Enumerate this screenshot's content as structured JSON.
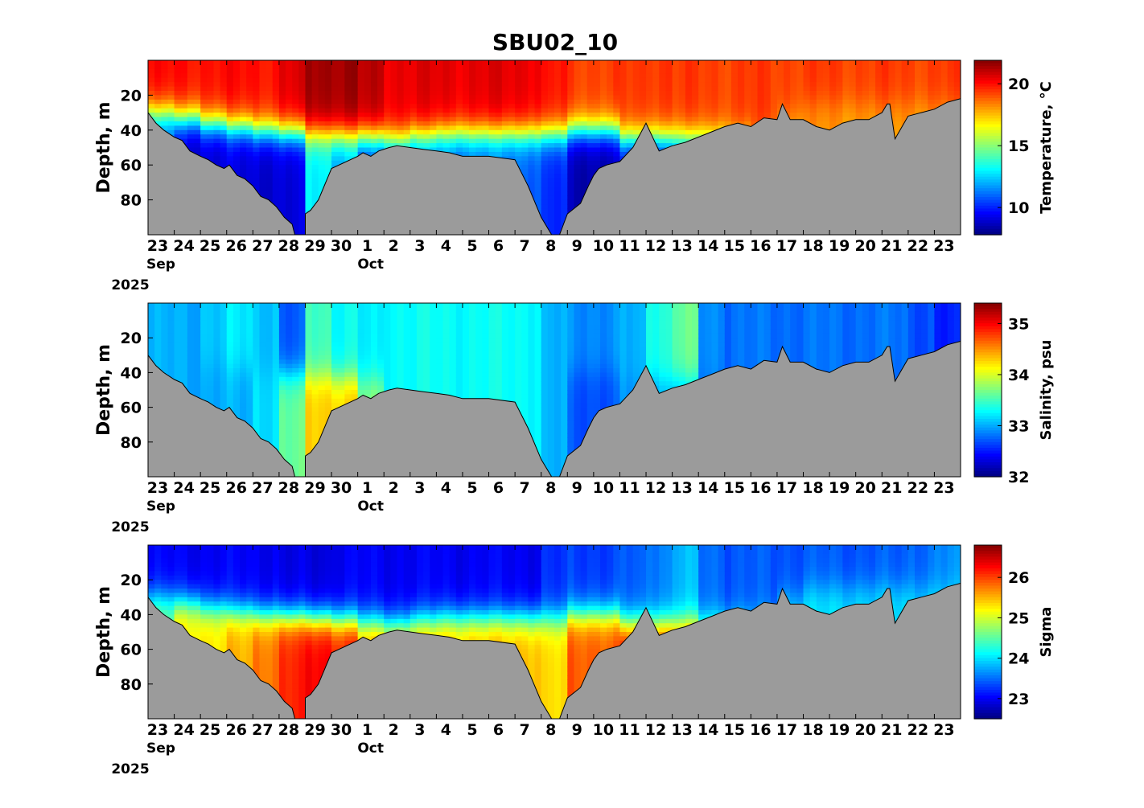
{
  "title": "SBU02_10",
  "x_axis": {
    "tick_labels": [
      "23",
      "24",
      "25",
      "26",
      "27",
      "28",
      "29",
      "30",
      "1",
      "2",
      "3",
      "4",
      "5",
      "6",
      "7",
      "8",
      "9",
      "10",
      "11",
      "12",
      "13",
      "14",
      "15",
      "16",
      "17",
      "18",
      "19",
      "20",
      "21",
      "22",
      "23"
    ],
    "month_labels": [
      {
        "text": "Sep",
        "tick_index": 0
      },
      {
        "text": "Oct",
        "tick_index": 8
      }
    ],
    "year_label": "2025"
  },
  "colors": {
    "bottom_fill": "#9b9b9b",
    "colormap": "jet"
  },
  "chart_data": [
    {
      "type": "heatmap",
      "name": "temperature",
      "title": "SBU02_10",
      "ylabel": "Depth, m",
      "yticks": [
        20,
        40,
        60,
        80
      ],
      "ylim": [
        100,
        0
      ],
      "colorbar_label": "Temperature, °C",
      "colorbar_ticks": [
        10,
        15,
        20
      ],
      "colorbar_range": [
        7.8,
        21.9
      ],
      "mixed_layer_depth": [
        30,
        33,
        36,
        38,
        40,
        41,
        42,
        43,
        44,
        45,
        43,
        42,
        42,
        42,
        42,
        42,
        40,
        40,
        45,
        45,
        45,
        45,
        45,
        40,
        30,
        25,
        25,
        25,
        25,
        25,
        25
      ],
      "surface_value": [
        20.0,
        20.0,
        20.0,
        20.0,
        20.0,
        20.5,
        21.5,
        21.5,
        21.0,
        20.5,
        20.5,
        20.5,
        20.5,
        20.5,
        20.5,
        19.8,
        19.3,
        19.3,
        19.3,
        19.5,
        19.3,
        19.3,
        19.3,
        19.3,
        19.3,
        19.3,
        19.3,
        19.3,
        19.3,
        19.3,
        19.3
      ],
      "deep_value": [
        11,
        9,
        9,
        9,
        9,
        9,
        13,
        12,
        10,
        11,
        11,
        11,
        11,
        11,
        11,
        10,
        8.5,
        8.5,
        9,
        9,
        10,
        11,
        13,
        18,
        18,
        18,
        18,
        18,
        18,
        18,
        18
      ]
    },
    {
      "type": "heatmap",
      "name": "salinity",
      "ylabel": "Depth, m",
      "yticks": [
        20,
        40,
        60,
        80
      ],
      "ylim": [
        100,
        0
      ],
      "colorbar_label": "Salinity, psu",
      "colorbar_ticks": [
        32,
        33,
        34,
        35
      ],
      "colorbar_range": [
        32.0,
        35.4
      ],
      "mixed_layer_depth": [
        30,
        33,
        36,
        38,
        40,
        41,
        42,
        43,
        44,
        45,
        43,
        42,
        42,
        42,
        42,
        42,
        40,
        40,
        45,
        45,
        45,
        45,
        45,
        40,
        30,
        25,
        25,
        25,
        25,
        25,
        25
      ],
      "surface_value": [
        33.0,
        33.0,
        33.1,
        33.2,
        33.1,
        32.7,
        33.5,
        33.3,
        33.2,
        33.3,
        33.3,
        33.3,
        33.3,
        33.3,
        33.3,
        33.0,
        32.9,
        32.9,
        33.0,
        33.4,
        33.6,
        32.9,
        32.8,
        32.8,
        32.8,
        32.8,
        32.8,
        32.8,
        32.8,
        32.7,
        32.5
      ],
      "deep_value": [
        33.0,
        33.0,
        33.0,
        33.0,
        33.2,
        33.6,
        34.3,
        34.3,
        33.7,
        33.3,
        33.3,
        33.3,
        33.3,
        33.3,
        33.3,
        33.0,
        32.7,
        32.7,
        32.9,
        33.0,
        33.0,
        32.8,
        32.8,
        32.8,
        32.8,
        32.8,
        32.8,
        32.8,
        32.8,
        32.7,
        32.5
      ]
    },
    {
      "type": "heatmap",
      "name": "sigma",
      "ylabel": "Depth, m",
      "yticks": [
        20,
        40,
        60,
        80
      ],
      "ylim": [
        100,
        0
      ],
      "colorbar_label": "Sigma",
      "colorbar_ticks": [
        23,
        24,
        25,
        26
      ],
      "colorbar_range": [
        22.5,
        26.8
      ],
      "mixed_layer_depth": [
        30,
        33,
        36,
        38,
        40,
        41,
        42,
        43,
        44,
        45,
        43,
        42,
        42,
        42,
        42,
        42,
        40,
        40,
        45,
        45,
        45,
        45,
        45,
        40,
        30,
        25,
        25,
        25,
        25,
        25,
        25
      ],
      "surface_value": [
        23.0,
        23.0,
        23.0,
        23.0,
        23.0,
        22.9,
        22.9,
        23.0,
        23.0,
        23.0,
        23.0,
        23.0,
        23.0,
        23.0,
        23.0,
        23.2,
        23.3,
        23.3,
        23.4,
        23.6,
        23.8,
        23.5,
        23.4,
        23.4,
        23.4,
        23.4,
        23.4,
        23.4,
        23.4,
        23.5,
        23.6
      ],
      "deep_value": [
        24.6,
        25.3,
        25.3,
        25.5,
        25.8,
        26.1,
        26.3,
        26.2,
        25.6,
        25.5,
        25.5,
        25.5,
        25.5,
        25.5,
        25.5,
        25.3,
        25.9,
        25.9,
        26.2,
        26.1,
        26.0,
        25.2,
        25.0,
        24.0,
        24.0,
        24.0,
        24.0,
        24.0,
        24.0,
        24.0,
        24.0
      ]
    }
  ],
  "bottom_depth_profile": {
    "x_days": [
      0,
      0.3,
      0.6,
      1.0,
      1.3,
      1.6,
      2.0,
      2.3,
      2.6,
      2.9,
      3.1,
      3.4,
      3.7,
      4.0,
      4.3,
      4.6,
      4.9,
      5.2,
      5.5,
      5.6,
      5.8,
      6.0,
      6.0,
      6.2,
      6.5,
      7.0,
      8.0,
      8.2,
      8.5,
      8.8,
      9.2,
      9.5,
      10.0,
      10.5,
      11.0,
      11.5,
      12.0,
      13.0,
      14.0,
      14.5,
      15.0,
      15.4,
      15.7,
      16.0,
      16.5,
      16.8,
      17.0,
      17.2,
      17.5,
      18.0,
      18.5,
      19.0,
      19.5,
      20.0,
      20.5,
      21.0,
      21.5,
      22.0,
      22.5,
      23.0,
      23.5,
      24.0,
      24.2,
      24.5,
      25.0,
      25.5,
      26.0,
      26.5,
      27.0,
      27.5,
      28.0,
      28.2,
      28.3,
      28.5,
      29.0,
      29.5,
      30.0,
      30.5,
      31.0
    ],
    "depth_m": [
      30,
      36,
      40,
      44,
      46,
      52,
      55,
      57,
      60,
      62,
      60,
      66,
      68,
      72,
      78,
      80,
      84,
      90,
      94,
      100,
      100,
      100,
      88,
      86,
      80,
      62,
      55,
      53,
      55,
      52,
      50,
      49,
      50,
      51,
      52,
      53,
      55,
      55,
      57,
      72,
      90,
      100,
      100,
      88,
      82,
      72,
      66,
      62,
      60,
      58,
      50,
      36,
      52,
      49,
      47,
      44,
      41,
      38,
      36,
      38,
      33,
      34,
      25,
      34,
      34,
      38,
      40,
      36,
      34,
      34,
      30,
      25,
      25,
      45,
      32,
      30,
      28,
      24,
      22
    ]
  }
}
